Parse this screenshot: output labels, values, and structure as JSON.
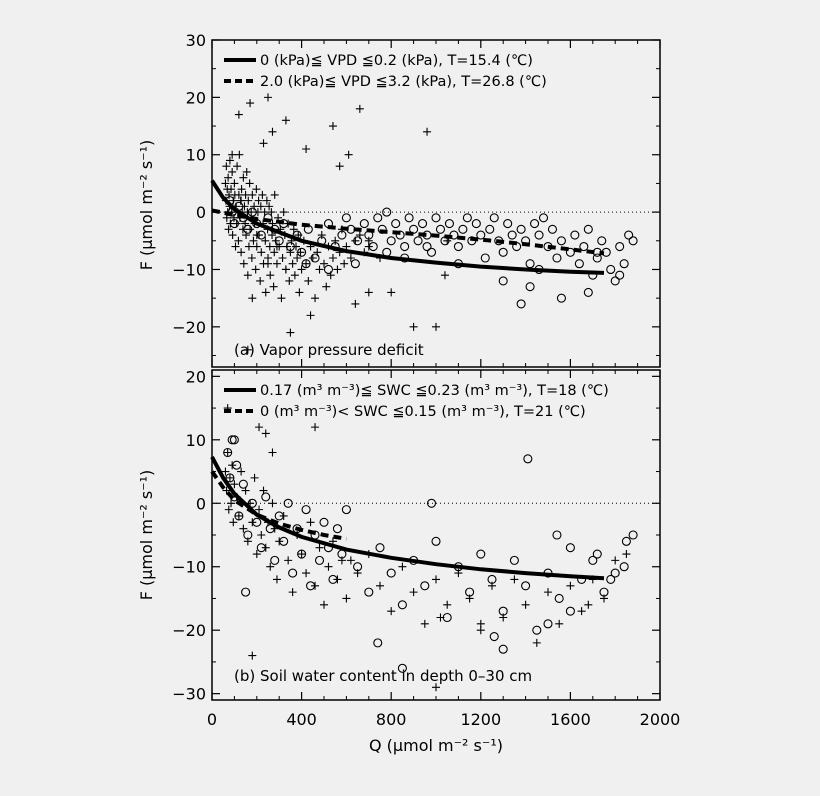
{
  "chart_data": [
    {
      "type": "scatter",
      "panel_label": "(a) Vapor pressure deficit",
      "ylabel": "F (μmol m⁻² s⁻¹)",
      "xlim": [
        0,
        2000
      ],
      "ylim": [
        -27,
        30
      ],
      "yticks": [
        -20,
        -10,
        0,
        10,
        20,
        30
      ],
      "xticks": [
        0,
        400,
        800,
        1200,
        1600,
        2000
      ],
      "reference_line": 0,
      "legend": [
        {
          "style": "solid",
          "label": "0 (kPa)≦ VPD ≦0.2 (kPa), T=15.4 (℃)"
        },
        {
          "style": "dashed",
          "label": "2.0 (kPa)≦ VPD ≦3.2 (kPa), T=26.8 (℃)"
        }
      ],
      "fits": [
        {
          "style": "solid",
          "x": [
            0,
            50,
            100,
            200,
            300,
            400,
            600,
            800,
            1000,
            1200,
            1400,
            1600,
            1750
          ],
          "y": [
            5.5,
            2.5,
            0.5,
            -2.0,
            -3.5,
            -5.0,
            -6.8,
            -8.0,
            -8.8,
            -9.5,
            -10.0,
            -10.4,
            -10.6
          ]
        },
        {
          "style": "dashed",
          "x": [
            0,
            100,
            200,
            400,
            600,
            800,
            1000,
            1200,
            1400,
            1600,
            1750
          ],
          "y": [
            0.3,
            -0.5,
            -1.2,
            -2.2,
            -2.9,
            -3.5,
            -4.1,
            -4.8,
            -5.6,
            -6.5,
            -7.2
          ]
        }
      ],
      "series": [
        {
          "marker": "plus",
          "x": [
            60,
            62,
            64,
            66,
            68,
            70,
            72,
            74,
            76,
            78,
            80,
            82,
            85,
            88,
            90,
            92,
            95,
            98,
            100,
            102,
            105,
            108,
            110,
            112,
            115,
            118,
            120,
            122,
            125,
            128,
            130,
            132,
            135,
            138,
            140,
            142,
            145,
            148,
            150,
            152,
            155,
            158,
            160,
            162,
            165,
            168,
            170,
            175,
            178,
            180,
            185,
            188,
            190,
            195,
            198,
            200,
            205,
            208,
            210,
            215,
            218,
            220,
            225,
            228,
            230,
            235,
            238,
            240,
            245,
            248,
            250,
            255,
            258,
            260,
            265,
            268,
            270,
            275,
            278,
            280,
            285,
            290,
            295,
            300,
            305,
            310,
            315,
            320,
            325,
            330,
            335,
            340,
            345,
            350,
            355,
            360,
            365,
            370,
            375,
            380,
            385,
            390,
            395,
            400,
            410,
            420,
            430,
            440,
            450,
            460,
            470,
            480,
            490,
            500,
            510,
            520,
            530,
            540,
            550,
            560,
            570,
            580,
            590,
            600,
            620,
            640,
            660,
            680,
            700,
            750,
            800,
            900,
            1000,
            120,
            170,
            230,
            270,
            330,
            420,
            540,
            660,
            250,
            160,
            1040,
            1050,
            960,
            200,
            130,
            90,
            350,
            440,
            570,
            610,
            640,
            700,
            700,
            330,
            290,
            250,
            180
          ],
          "y": [
            5,
            2,
            8,
            -1,
            4,
            0,
            6,
            -3,
            3,
            1,
            9,
            -2,
            4,
            0,
            7,
            -4,
            2,
            -1,
            5,
            3,
            -6,
            1,
            -2,
            8,
            0,
            -5,
            3,
            10,
            -1,
            2,
            -7,
            4,
            0,
            -3,
            6,
            -9,
            1,
            -2,
            3,
            -4,
            7,
            0,
            -11,
            2,
            -6,
            5,
            -3,
            0,
            -8,
            3,
            -5,
            1,
            -2,
            -10,
            4,
            -6,
            0,
            2,
            -4,
            -12,
            1,
            -7,
            3,
            -2,
            -9,
            0,
            -5,
            -14,
            2,
            -3,
            -8,
            1,
            -6,
            -11,
            0,
            -4,
            -2,
            -13,
            -7,
            3,
            -5,
            -9,
            -1,
            -6,
            -3,
            -15,
            -8,
            0,
            -4,
            -10,
            -6,
            -2,
            -12,
            -7,
            -5,
            -9,
            -3,
            -11,
            -6,
            -8,
            -4,
            -14,
            -7,
            -10,
            -5,
            -9,
            -12,
            -6,
            -8,
            -15,
            -7,
            -10,
            -4,
            -9,
            -13,
            -6,
            -11,
            -8,
            -5,
            -10,
            -7,
            -3,
            -9,
            -6,
            -8,
            -5,
            -4,
            -7,
            -6,
            -8,
            -14,
            -20,
            -20,
            17,
            19,
            12,
            14,
            16,
            11,
            15,
            18,
            20,
            -24,
            -11,
            -5,
            14,
            -4,
            2,
            10,
            -21,
            -18,
            8,
            10,
            -16,
            -5,
            -14,
            -10,
            -6,
            -9,
            -15
          ]
        },
        {
          "marker": "circle",
          "x": [
            80,
            90,
            100,
            120,
            140,
            160,
            180,
            200,
            220,
            250,
            280,
            300,
            320,
            350,
            380,
            400,
            430,
            460,
            490,
            520,
            550,
            580,
            600,
            620,
            650,
            680,
            700,
            720,
            740,
            760,
            780,
            800,
            820,
            840,
            860,
            880,
            900,
            920,
            940,
            960,
            980,
            1000,
            1020,
            1040,
            1060,
            1080,
            1100,
            1120,
            1140,
            1160,
            1180,
            1200,
            1220,
            1240,
            1260,
            1280,
            1300,
            1320,
            1340,
            1360,
            1380,
            1400,
            1420,
            1440,
            1460,
            1480,
            1500,
            1520,
            1540,
            1560,
            1600,
            1620,
            1640,
            1660,
            1680,
            1700,
            1720,
            1740,
            1760,
            1780,
            1800,
            1820,
            1840,
            1860,
            1880,
            1680,
            1560,
            1420,
            1380,
            1820,
            1720,
            1460,
            1300,
            1100,
            960,
            860,
            780,
            640,
            520,
            420
          ],
          "y": [
            2,
            0,
            -2,
            1,
            -1,
            -3,
            0,
            -2,
            -4,
            -1,
            -3,
            -5,
            -2,
            -6,
            -4,
            -7,
            -3,
            -8,
            -5,
            -2,
            -6,
            -4,
            -1,
            -3,
            -5,
            -2,
            -4,
            -6,
            -1,
            -3,
            0,
            -5,
            -2,
            -4,
            -6,
            -1,
            -3,
            -5,
            -2,
            -4,
            -7,
            -1,
            -3,
            -5,
            -2,
            -4,
            -6,
            -3,
            -1,
            -5,
            -2,
            -4,
            -8,
            -3,
            -1,
            -5,
            -7,
            -2,
            -4,
            -6,
            -3,
            -5,
            -9,
            -2,
            -4,
            -1,
            -6,
            -3,
            -8,
            -5,
            -7,
            -4,
            -9,
            -6,
            -3,
            -11,
            -8,
            -5,
            -7,
            -10,
            -12,
            -6,
            -9,
            -4,
            -5,
            -14,
            -15,
            -13,
            -16,
            -11,
            -7,
            -10,
            -12,
            -9,
            -6,
            -8,
            -7,
            -9,
            -10,
            -9
          ]
        }
      ]
    },
    {
      "type": "scatter",
      "panel_label": "(b) Soil water content in depth 0–30 cm",
      "ylabel": "F (μmol m⁻² s⁻¹)",
      "xlabel": "Q (μmol m⁻² s⁻¹)",
      "xlim": [
        0,
        2000
      ],
      "ylim": [
        -31,
        21
      ],
      "yticks": [
        -30,
        -20,
        -10,
        0,
        10,
        20
      ],
      "xticks": [
        0,
        400,
        800,
        1200,
        1600,
        2000
      ],
      "reference_line": 0,
      "legend": [
        {
          "style": "solid",
          "label": "0.17 (m³ m⁻³)≦ SWC ≦0.23 (m³ m⁻³), T=18 (℃)"
        },
        {
          "style": "dashed",
          "label": "0 (m³ m⁻³)< SWC ≦0.15 (m³ m⁻³), T=21 (℃)"
        }
      ],
      "fits": [
        {
          "style": "solid",
          "x": [
            0,
            50,
            100,
            200,
            300,
            400,
            600,
            800,
            1000,
            1200,
            1400,
            1600,
            1750
          ],
          "y": [
            7.3,
            4.0,
            1.5,
            -1.8,
            -3.8,
            -5.3,
            -7.3,
            -8.6,
            -9.6,
            -10.4,
            -11.0,
            -11.5,
            -11.8
          ]
        },
        {
          "style": "dashed",
          "x": [
            0,
            50,
            100,
            200,
            300,
            400,
            500,
            600
          ],
          "y": [
            5.0,
            2.5,
            0.5,
            -1.8,
            -3.2,
            -4.2,
            -5.0,
            -5.6
          ]
        }
      ],
      "series": [
        {
          "marker": "plus",
          "x": [
            60,
            65,
            70,
            75,
            80,
            85,
            90,
            95,
            100,
            110,
            120,
            130,
            140,
            150,
            160,
            170,
            180,
            190,
            200,
            210,
            220,
            230,
            240,
            250,
            260,
            270,
            280,
            290,
            300,
            320,
            340,
            360,
            380,
            400,
            420,
            440,
            460,
            480,
            500,
            520,
            540,
            560,
            580,
            600,
            650,
            700,
            750,
            800,
            850,
            900,
            950,
            1000,
            1050,
            1100,
            1150,
            1200,
            1250,
            1300,
            1350,
            1400,
            1450,
            1500,
            1550,
            1600,
            1650,
            1700,
            1750,
            1800,
            1850,
            70,
            180,
            210,
            240,
            270,
            460,
            620,
            1020,
            1000,
            1200,
            1680
          ],
          "y": [
            5,
            2,
            8,
            -1,
            4,
            0,
            6,
            -3,
            3,
            1,
            -2,
            5,
            -4,
            2,
            -6,
            0,
            -3,
            4,
            -8,
            -1,
            -5,
            2,
            -7,
            -3,
            -10,
            0,
            -4,
            -12,
            -6,
            -2,
            -9,
            -14,
            -5,
            -8,
            -11,
            -3,
            -13,
            -7,
            -16,
            -10,
            -6,
            -12,
            -9,
            -15,
            -11,
            -8,
            -13,
            -17,
            -10,
            -14,
            -19,
            -12,
            -16,
            -11,
            -15,
            -20,
            -13,
            -18,
            -12,
            -16,
            -22,
            -14,
            -19,
            -13,
            -17,
            -12,
            -15,
            -9,
            -8,
            15,
            -24,
            12,
            11,
            8,
            12,
            -9,
            -18,
            -29,
            -19,
            -16
          ]
        },
        {
          "marker": "circle",
          "x": [
            70,
            80,
            90,
            100,
            110,
            120,
            140,
            160,
            180,
            200,
            220,
            240,
            260,
            280,
            300,
            320,
            340,
            360,
            380,
            400,
            420,
            440,
            460,
            480,
            500,
            520,
            540,
            560,
            580,
            600,
            650,
            700,
            750,
            800,
            850,
            900,
            950,
            1000,
            1050,
            1100,
            1150,
            1200,
            1250,
            1300,
            1350,
            1400,
            1450,
            1500,
            1550,
            1600,
            1650,
            1700,
            1750,
            1800,
            1850,
            1880,
            100,
            150,
            1410,
            980,
            850,
            740,
            1260,
            1300,
            1500,
            1600,
            1780,
            1840,
            1720,
            1540
          ],
          "y": [
            8,
            4,
            10,
            1,
            6,
            -2,
            3,
            -5,
            0,
            -3,
            -7,
            1,
            -4,
            -9,
            -2,
            -6,
            0,
            -11,
            -4,
            -8,
            -1,
            -13,
            -5,
            -9,
            -3,
            -7,
            -12,
            -4,
            -8,
            -1,
            -10,
            -14,
            -7,
            -11,
            -16,
            -9,
            -13,
            -6,
            -18,
            -10,
            -14,
            -8,
            -12,
            -17,
            -9,
            -13,
            -20,
            -11,
            -15,
            -7,
            -12,
            -9,
            -14,
            -11,
            -6,
            -5,
            10,
            -14,
            7,
            0,
            -26,
            -22,
            -21,
            -23,
            -19,
            -17,
            -12,
            -10,
            -8,
            -5
          ]
        }
      ]
    }
  ]
}
